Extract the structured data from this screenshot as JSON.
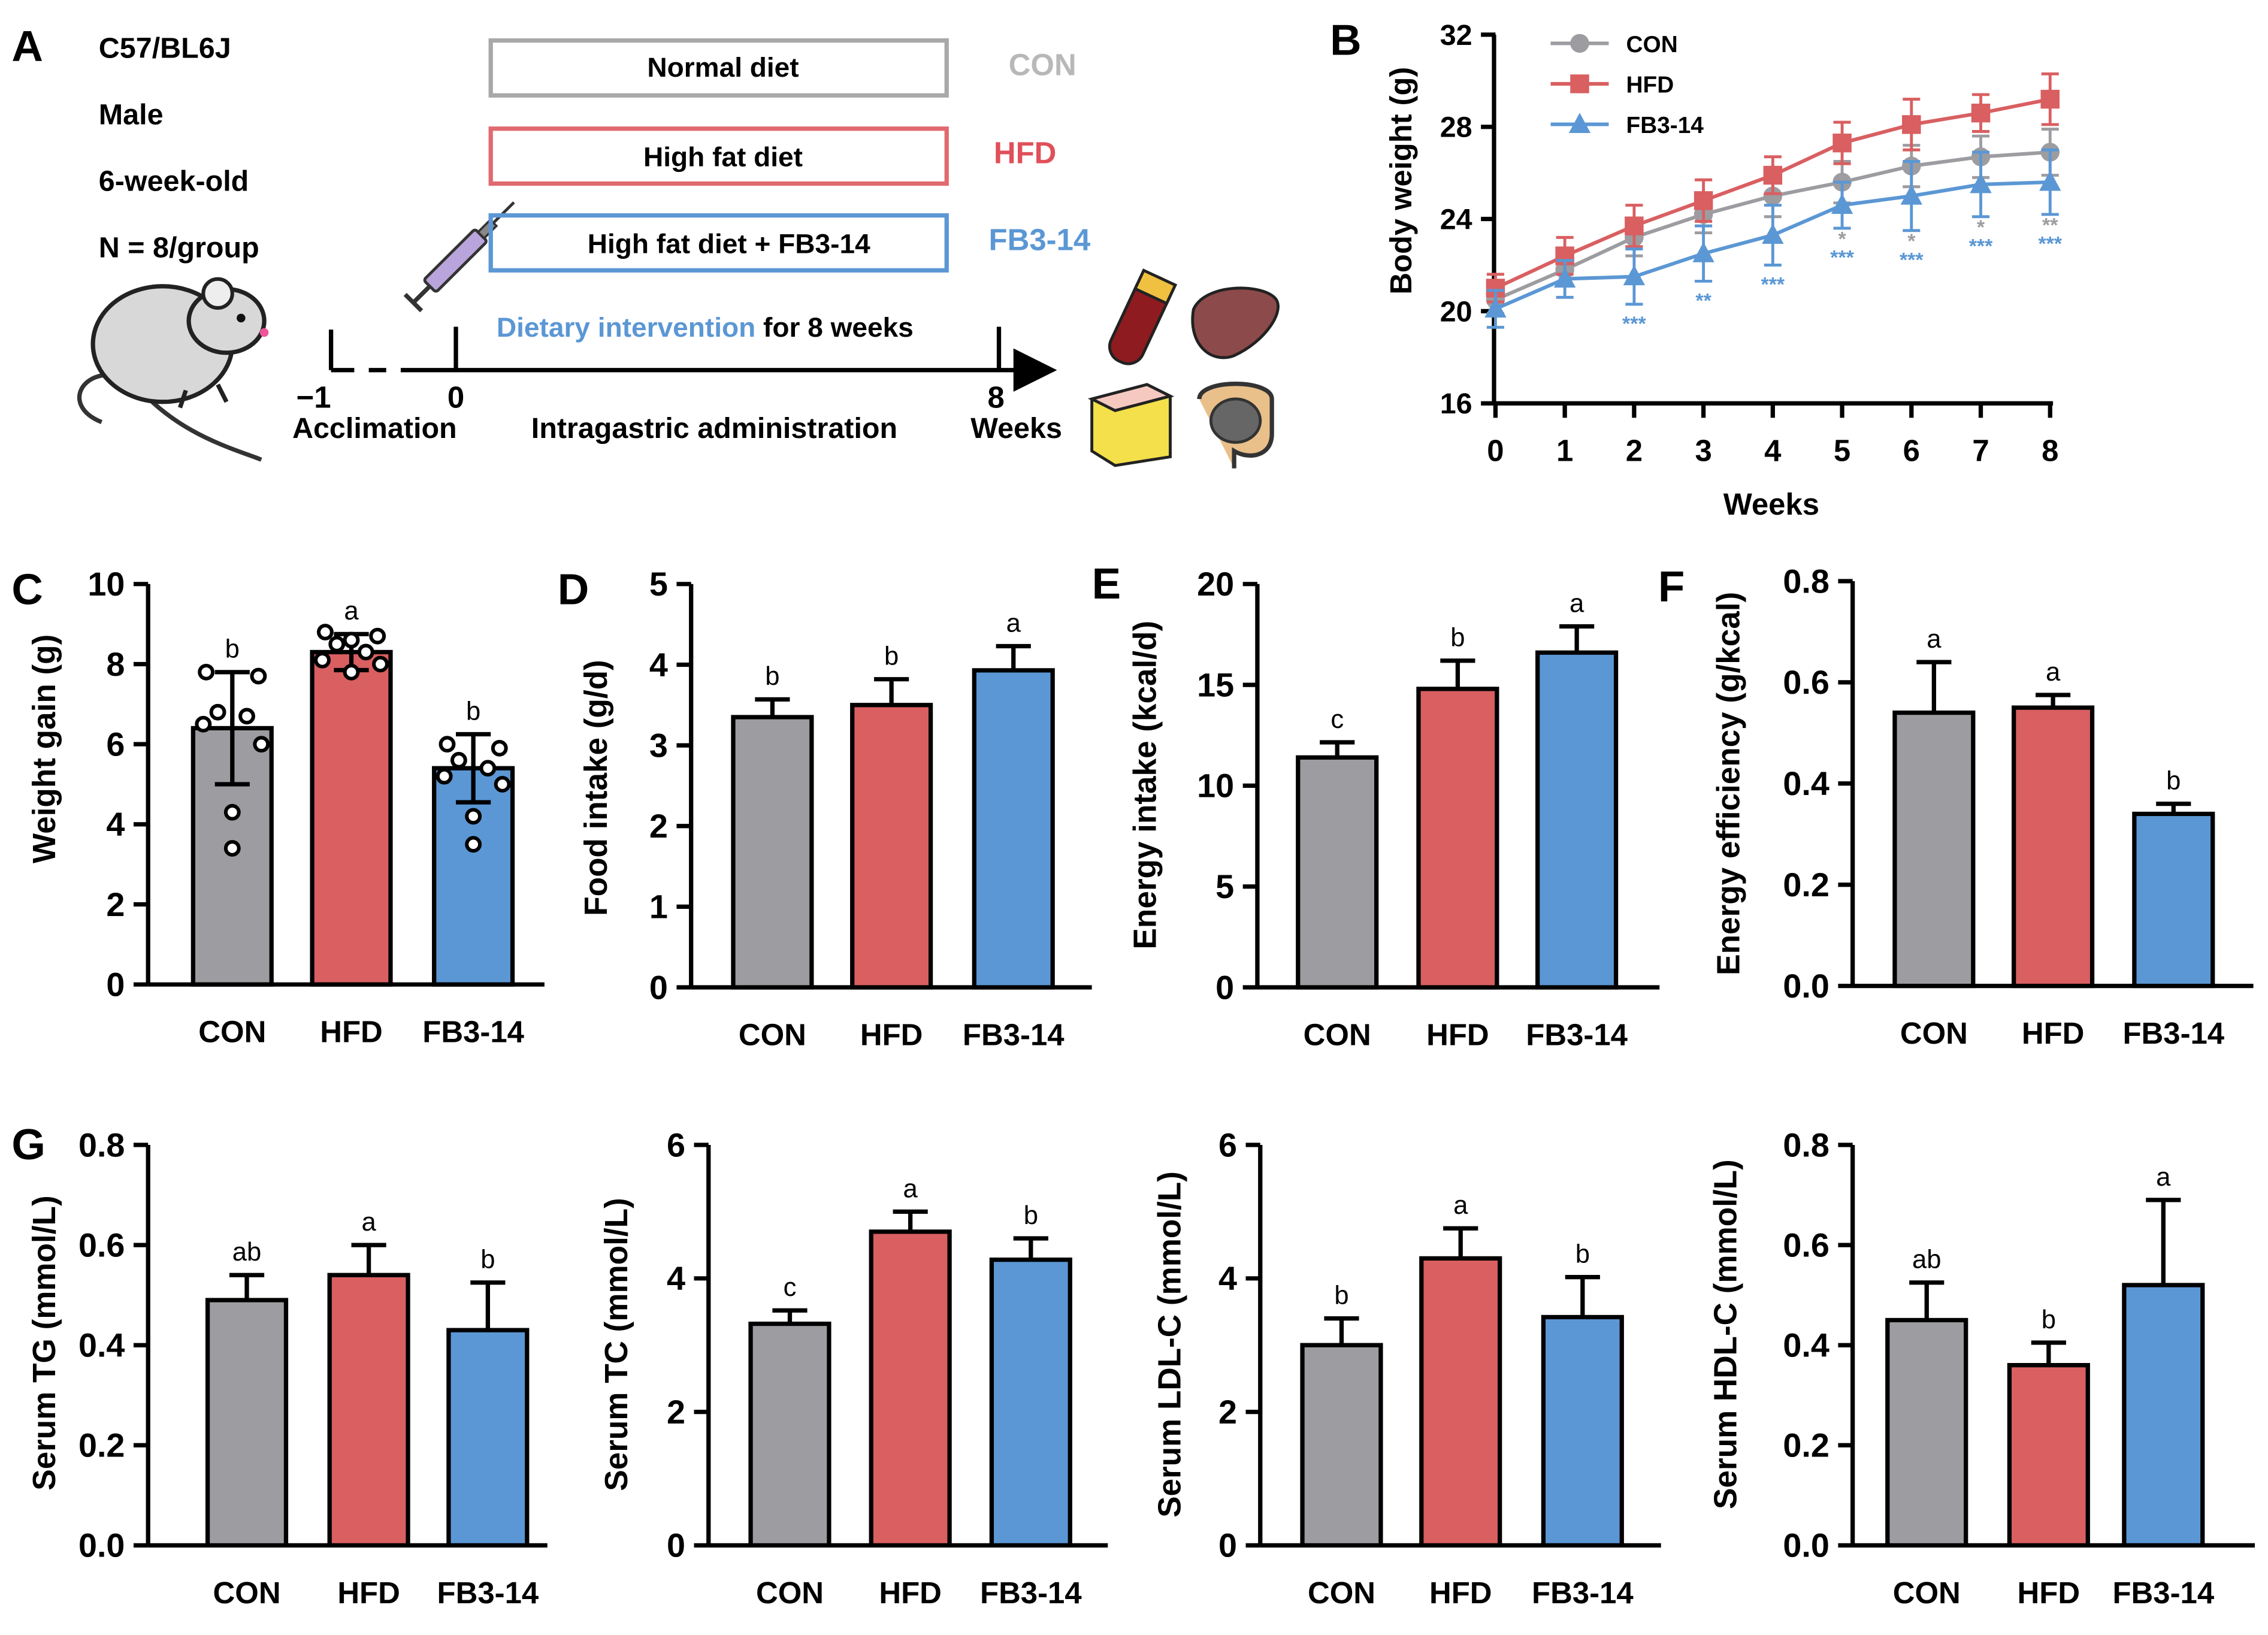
{
  "colors": {
    "con": "#9d9ca0",
    "hfd": "#d95f61",
    "fb": "#5b97d4",
    "con_text": "#b8b8b8",
    "hfd_text": "#e0505a",
    "fb_text": "#5b97d4",
    "axis": "#000000"
  },
  "panel_a": {
    "letter": "A",
    "mouse_info": [
      "C57/BL6J",
      "Male",
      "6-week-old",
      "N = 8/group"
    ],
    "diet_boxes": [
      {
        "label": "Normal diet",
        "group": "CON"
      },
      {
        "label": "High fat diet",
        "group": "HFD"
      },
      {
        "label": "High fat diet + FB3-14",
        "group": "FB3-14"
      }
    ],
    "intervention_highlight": "Dietary intervention",
    "intervention_rest": " for 8 weeks",
    "timeline_ticks": [
      "−1",
      "0",
      "8"
    ],
    "acclimation_label": "Acclimation",
    "admin_label": "Intragastric administration",
    "weeks_label": "Weeks",
    "icons": [
      "syringe-icon",
      "mouse-icon",
      "blood-tube-icon",
      "liver-icon",
      "fat-tissue-icon",
      "intestine-icon"
    ]
  },
  "panel_b": {
    "letter": "B",
    "chart_data": {
      "type": "line",
      "title": "",
      "xlabel": "Weeks",
      "ylabel": "Body weight (g)",
      "x": [
        0,
        1,
        2,
        3,
        4,
        5,
        6,
        7,
        8
      ],
      "ylim": [
        16,
        32
      ],
      "yticks": [
        16,
        20,
        24,
        28,
        32
      ],
      "series": [
        {
          "name": "CON",
          "values": [
            20.5,
            21.8,
            23.2,
            24.2,
            25.0,
            25.6,
            26.3,
            26.7,
            26.9
          ],
          "err": [
            0.6,
            0.7,
            0.8,
            0.8,
            0.9,
            0.9,
            0.9,
            0.9,
            1.0
          ]
        },
        {
          "name": "HFD",
          "values": [
            21.0,
            22.4,
            23.7,
            24.8,
            25.9,
            27.3,
            28.1,
            28.6,
            29.2
          ],
          "err": [
            0.6,
            0.8,
            0.9,
            0.9,
            0.8,
            0.9,
            1.1,
            0.8,
            1.1
          ]
        },
        {
          "name": "FB3-14",
          "values": [
            20.1,
            21.4,
            21.5,
            22.5,
            23.3,
            24.6,
            25.0,
            25.5,
            25.6
          ],
          "err": [
            0.8,
            0.8,
            1.2,
            1.2,
            1.3,
            1.0,
            1.5,
            1.4,
            1.4
          ]
        }
      ],
      "sig_grey": [
        "",
        "",
        "",
        "",
        "",
        "*",
        "*",
        "*",
        "**"
      ],
      "sig_blue": [
        "",
        "",
        "***",
        "**",
        "***",
        "***",
        "***",
        "***",
        "***"
      ]
    }
  },
  "bar_panels": [
    {
      "letter": "C",
      "chart_data": {
        "type": "bar",
        "categories": [
          "CON",
          "HFD",
          "FB3-14"
        ],
        "values": [
          6.4,
          8.3,
          5.4
        ],
        "err": [
          1.4,
          0.45,
          0.85
        ],
        "letters": [
          "b",
          "a",
          "b"
        ],
        "ylabel": "Weight gain (g)",
        "ylim": [
          0,
          10
        ],
        "yticks": [
          "0",
          "2",
          "4",
          "6",
          "8",
          "10"
        ],
        "points": [
          [
            7.8,
            7.7,
            6.8,
            6.7,
            6.5,
            6.0,
            4.3,
            3.4
          ],
          [
            8.8,
            8.7,
            8.5,
            8.3,
            8.1,
            8.0,
            7.8,
            8.6
          ],
          [
            6.0,
            5.9,
            5.6,
            5.4,
            5.2,
            5.0,
            4.2,
            3.5
          ]
        ]
      }
    },
    {
      "letter": "D",
      "chart_data": {
        "type": "bar",
        "categories": [
          "CON",
          "HFD",
          "FB3-14"
        ],
        "values": [
          3.35,
          3.5,
          3.93
        ],
        "err": [
          0.22,
          0.32,
          0.3
        ],
        "letters": [
          "b",
          "b",
          "a"
        ],
        "ylabel": "Food intake (g/d)",
        "ylim": [
          0,
          5
        ],
        "yticks": [
          "0",
          "1",
          "2",
          "3",
          "4",
          "5"
        ]
      }
    },
    {
      "letter": "E",
      "chart_data": {
        "type": "bar",
        "categories": [
          "CON",
          "HFD",
          "FB3-14"
        ],
        "values": [
          11.4,
          14.8,
          16.6
        ],
        "err": [
          0.75,
          1.4,
          1.3
        ],
        "letters": [
          "c",
          "b",
          "a"
        ],
        "ylabel": "Energy intake (kcal/d)",
        "ylim": [
          0,
          20
        ],
        "yticks": [
          "0",
          "5",
          "10",
          "15",
          "20"
        ]
      }
    },
    {
      "letter": "F",
      "chart_data": {
        "type": "bar",
        "categories": [
          "CON",
          "HFD",
          "FB3-14"
        ],
        "values": [
          0.54,
          0.55,
          0.34
        ],
        "err": [
          0.1,
          0.025,
          0.02
        ],
        "letters": [
          "a",
          "a",
          "b"
        ],
        "ylabel": "Energy efficiency (g/kcal)",
        "ylim": [
          0,
          0.8
        ],
        "yticks": [
          "0.0",
          "0.2",
          "0.4",
          "0.6",
          "0.8"
        ]
      }
    },
    {
      "letter": "G",
      "chart_data": {
        "type": "bar",
        "categories": [
          "CON",
          "HFD",
          "FB3-14"
        ],
        "values": [
          0.49,
          0.54,
          0.43
        ],
        "err": [
          0.05,
          0.06,
          0.095
        ],
        "letters": [
          "ab",
          "a",
          "b"
        ],
        "ylabel": "Serum TG (mmol/L)",
        "ylim": [
          0,
          0.8
        ],
        "yticks": [
          "0.0",
          "0.2",
          "0.4",
          "0.6",
          "0.8"
        ]
      }
    },
    {
      "letter": "",
      "chart_data": {
        "type": "bar",
        "categories": [
          "CON",
          "HFD",
          "FB3-14"
        ],
        "values": [
          3.32,
          4.7,
          4.28
        ],
        "err": [
          0.2,
          0.3,
          0.32
        ],
        "letters": [
          "c",
          "a",
          "b"
        ],
        "ylabel": "Serum TC (mmol/L)",
        "ylim": [
          0,
          6
        ],
        "yticks": [
          "0",
          "2",
          "4",
          "6"
        ]
      }
    },
    {
      "letter": "",
      "chart_data": {
        "type": "bar",
        "categories": [
          "CON",
          "HFD",
          "FB3-14"
        ],
        "values": [
          3.0,
          4.3,
          3.42
        ],
        "err": [
          0.4,
          0.45,
          0.6
        ],
        "letters": [
          "b",
          "a",
          "b"
        ],
        "ylabel": "Serum LDL-C (mmol/L)",
        "ylim": [
          0,
          6
        ],
        "yticks": [
          "0",
          "2",
          "4",
          "6"
        ]
      }
    },
    {
      "letter": "",
      "chart_data": {
        "type": "bar",
        "categories": [
          "CON",
          "HFD",
          "FB3-14"
        ],
        "values": [
          0.45,
          0.36,
          0.52
        ],
        "err": [
          0.075,
          0.045,
          0.17
        ],
        "letters": [
          "ab",
          "b",
          "a"
        ],
        "ylabel": "Serum HDL-C (mmol/L)",
        "ylim": [
          0,
          0.8
        ],
        "yticks": [
          "0.0",
          "0.2",
          "0.4",
          "0.6",
          "0.8"
        ]
      }
    }
  ]
}
